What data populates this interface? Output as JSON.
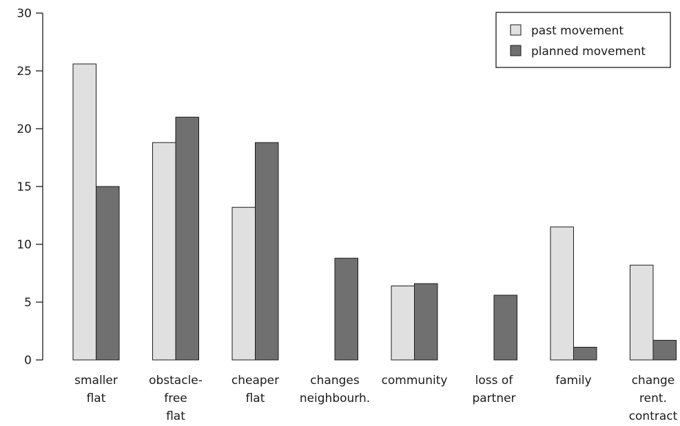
{
  "chart_data": {
    "type": "bar",
    "categories": [
      [
        "smaller",
        "flat"
      ],
      [
        "obstacle-",
        "free",
        "flat"
      ],
      [
        "cheaper",
        "flat"
      ],
      [
        "changes",
        "neighbourh."
      ],
      [
        "community"
      ],
      [
        "loss of",
        "partner"
      ],
      [
        "family"
      ],
      [
        "change",
        "rent.",
        "contract"
      ]
    ],
    "series": [
      {
        "name": "past movement",
        "color": "#e0e0e0",
        "values": [
          25.6,
          18.8,
          13.2,
          0,
          6.4,
          0,
          11.5,
          8.2
        ]
      },
      {
        "name": "planned movement",
        "color": "#707070",
        "values": [
          15.0,
          21.0,
          18.8,
          8.8,
          6.6,
          5.6,
          1.1,
          1.7
        ]
      }
    ],
    "ylim": [
      0,
      30
    ],
    "yticks": [
      0,
      5,
      10,
      15,
      20,
      25,
      30
    ],
    "legend_position": "top-right",
    "grid": false
  }
}
